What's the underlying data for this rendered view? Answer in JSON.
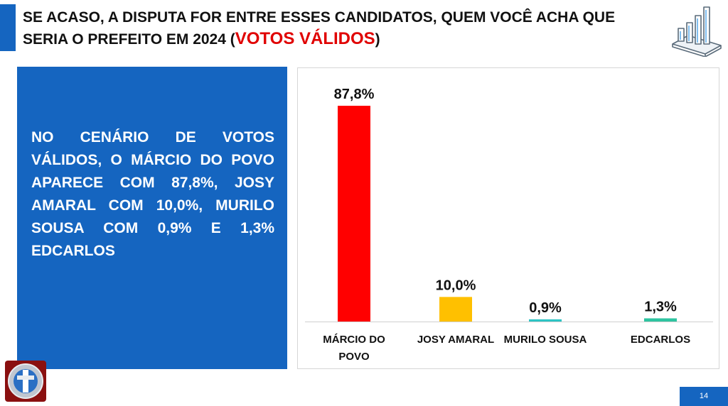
{
  "header": {
    "title_main": "SE ACASO, A DISPUTA FOR ENTRE ESSES CANDIDATOS, QUEM VOCÊ ACHA QUE SERIA O PREFEITO EM 2024 (",
    "title_highlight": "VOTOS VÁLIDOS",
    "title_end": ")"
  },
  "panel": {
    "text": "NO CENÁRIO DE VOTOS VÁLIDOS, O MÁRCIO DO POVO APARECE COM 87,8%, JOSY AMARAL COM 10,0%, MURILO SOUSA COM 0,9% E 1,3% EDCARLOS"
  },
  "footer": {
    "page_number": "14"
  },
  "icons": {
    "header_icon": "bar-chart-icon",
    "logo": "brand-logo"
  },
  "colors": {
    "accent": "#1565c0",
    "highlight": "#e00000"
  },
  "chart_data": {
    "type": "bar",
    "categories": [
      "MÁRCIO DO POVO",
      "JOSY AMARAL",
      "MURILO SOUSA",
      "EDCARLOS"
    ],
    "category_lines": [
      [
        "MÁRCIO DO",
        "POVO"
      ],
      [
        "JOSY AMARAL"
      ],
      [
        "MURILO SOUSA"
      ],
      [
        "EDCARLOS"
      ]
    ],
    "values": [
      87.8,
      10.0,
      0.9,
      1.3
    ],
    "data_labels": [
      "87,8%",
      "10,0%",
      "0,9%",
      "1,3%"
    ],
    "colors": [
      "#ff0000",
      "#ffc000",
      "#2ec4c4",
      "#2ec4a0"
    ],
    "ylim": [
      0,
      87.8
    ],
    "grid": false,
    "legend": "none"
  }
}
